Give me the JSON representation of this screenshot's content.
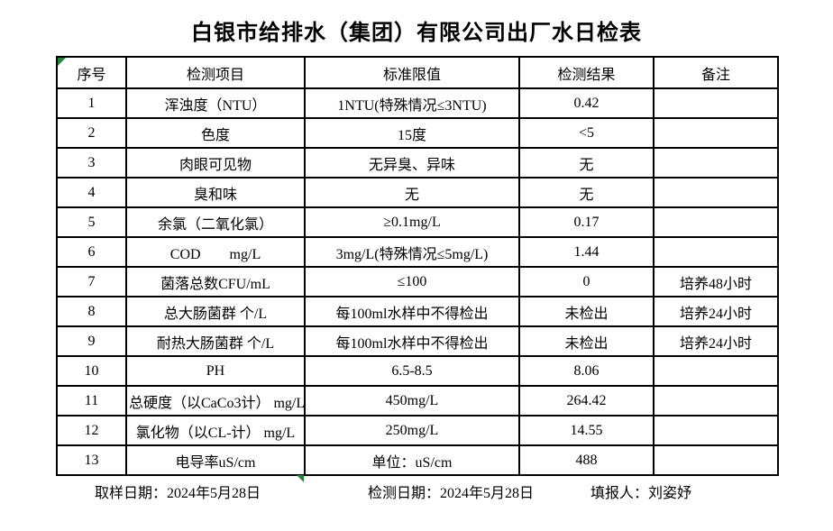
{
  "title": "白银市给排水（集团）有限公司出厂水日检表",
  "table": {
    "headers": [
      "序号",
      "检测项目",
      "标准限值",
      "检测结果",
      "备注"
    ],
    "rows": [
      [
        "1",
        "浑浊度（NTU）",
        "1NTU(特殊情况≤3NTU)",
        "0.42",
        ""
      ],
      [
        "2",
        "色度",
        "15度",
        "<5",
        ""
      ],
      [
        "3",
        "肉眼可见物",
        "无异臭、异味",
        "无",
        ""
      ],
      [
        "4",
        "臭和味",
        "无",
        "无",
        ""
      ],
      [
        "5",
        "余氯（二氧化氯）",
        "≥0.1mg/L",
        "0.17",
        ""
      ],
      [
        "6",
        "COD　　mg/L",
        "3mg/L(特殊情况≤5mg/L)",
        "1.44",
        ""
      ],
      [
        "7",
        "菌落总数CFU/mL",
        "≤100",
        "0",
        "培养48小时"
      ],
      [
        "8",
        "总大肠菌群 个/L",
        "每100ml水样中不得检出",
        "未检出",
        "培养24小时"
      ],
      [
        "9",
        "耐热大肠菌群 个/L",
        "每100ml水样中不得检出",
        "未检出",
        "培养24小时"
      ],
      [
        "10",
        "PH",
        "6.5-8.5",
        "8.06",
        ""
      ],
      [
        "11",
        "总硬度（以CaCo3计） mg/L",
        "450mg/L",
        "264.42",
        ""
      ],
      [
        "12",
        "氯化物（以CL-计） mg/L",
        "250mg/L",
        "14.55",
        ""
      ],
      [
        "13",
        "电导率uS/cm",
        "单位：uS/cm",
        "488",
        ""
      ]
    ]
  },
  "footer": {
    "items": [
      "取样日期：2024年5月28日",
      "检测日期：2024年5月28日",
      "填报人：刘姿妤"
    ]
  },
  "colors": {
    "border": "#000000",
    "text": "#000000",
    "marker_green": "#28823c",
    "background": "#ffffff"
  }
}
